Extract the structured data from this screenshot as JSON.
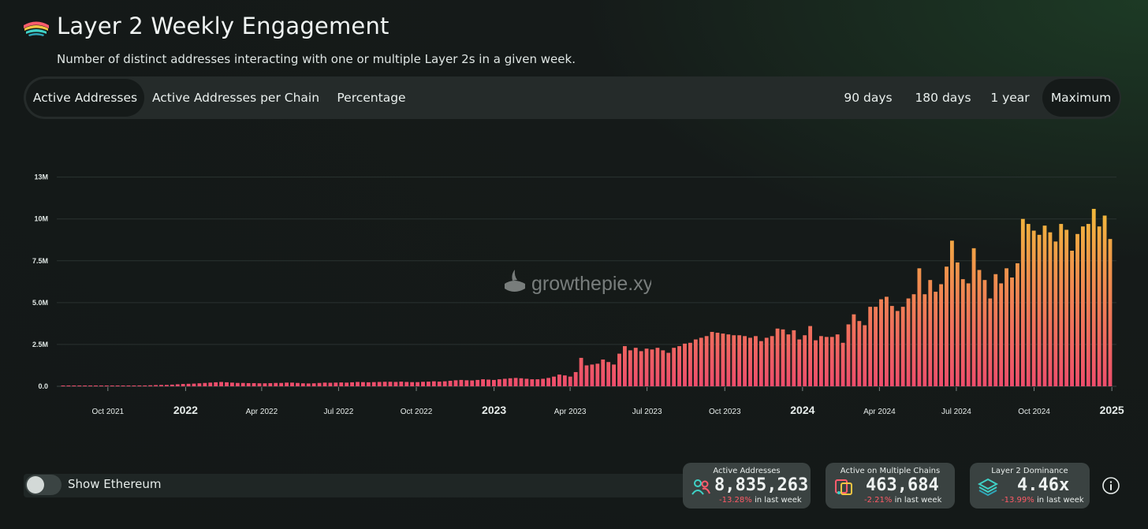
{
  "header": {
    "title": "Layer 2 Weekly Engagement",
    "subtitle": "Number of distinct addresses interacting with one or multiple Layer 2s in a given week."
  },
  "tabs": [
    {
      "label": "Active Addresses",
      "active": true
    },
    {
      "label": "Active Addresses per Chain",
      "active": false
    },
    {
      "label": "Percentage",
      "active": false
    }
  ],
  "ranges": [
    {
      "label": "90 days",
      "active": false
    },
    {
      "label": "180 days",
      "active": false
    },
    {
      "label": "1 year",
      "active": false
    },
    {
      "label": "Maximum",
      "active": true
    }
  ],
  "watermark": "growthepie.xyz",
  "chart_data": {
    "type": "bar",
    "title": "",
    "xlabel": "",
    "ylabel": "",
    "ylim": [
      0,
      13000000
    ],
    "yticks": [
      {
        "value": 0,
        "label": "0.0"
      },
      {
        "value": 2500000,
        "label": "2.5M"
      },
      {
        "value": 5000000,
        "label": "5.0M"
      },
      {
        "value": 7500000,
        "label": "7.5M"
      },
      {
        "value": 10000000,
        "label": "10M"
      },
      {
        "value": 12500000,
        "label": "13M"
      }
    ],
    "grid": true,
    "x_start": "2021-08-09",
    "x_end": "2024-12-30",
    "xticks": [
      {
        "date": "2021-10-01",
        "label": "Oct 2021",
        "major": false
      },
      {
        "date": "2022-01-01",
        "label": "2022",
        "major": true
      },
      {
        "date": "2022-04-01",
        "label": "Apr 2022",
        "major": false
      },
      {
        "date": "2022-07-01",
        "label": "Jul 2022",
        "major": false
      },
      {
        "date": "2022-10-01",
        "label": "Oct 2022",
        "major": false
      },
      {
        "date": "2023-01-01",
        "label": "2023",
        "major": true
      },
      {
        "date": "2023-04-01",
        "label": "Apr 2023",
        "major": false
      },
      {
        "date": "2023-07-01",
        "label": "Jul 2023",
        "major": false
      },
      {
        "date": "2023-10-01",
        "label": "Oct 2023",
        "major": false
      },
      {
        "date": "2024-01-01",
        "label": "2024",
        "major": true
      },
      {
        "date": "2024-04-01",
        "label": "Apr 2024",
        "major": false
      },
      {
        "date": "2024-07-01",
        "label": "Jul 2024",
        "major": false
      },
      {
        "date": "2024-10-01",
        "label": "Oct 2024",
        "major": false
      },
      {
        "date": "2025-01-01",
        "label": "2025",
        "major": true
      }
    ],
    "series": [
      {
        "values": [
          0.01,
          0.01,
          0.01,
          0.01,
          0.01,
          0.01,
          0.01,
          0.01,
          0.01,
          0.01,
          0.02,
          0.02,
          0.03,
          0.04,
          0.05,
          0.05,
          0.06,
          0.07,
          0.08,
          0.08,
          0.1,
          0.12,
          0.14,
          0.15,
          0.16,
          0.18,
          0.2,
          0.22,
          0.24,
          0.26,
          0.24,
          0.22,
          0.2,
          0.2,
          0.19,
          0.19,
          0.18,
          0.18,
          0.19,
          0.2,
          0.2,
          0.22,
          0.22,
          0.2,
          0.18,
          0.17,
          0.18,
          0.2,
          0.22,
          0.21,
          0.22,
          0.23,
          0.22,
          0.24,
          0.26,
          0.25,
          0.24,
          0.25,
          0.26,
          0.27,
          0.27,
          0.26,
          0.28,
          0.26,
          0.25,
          0.25,
          0.27,
          0.28,
          0.3,
          0.28,
          0.3,
          0.33,
          0.36,
          0.38,
          0.36,
          0.35,
          0.38,
          0.42,
          0.4,
          0.38,
          0.42,
          0.45,
          0.48,
          0.5,
          0.48,
          0.45,
          0.42,
          0.42,
          0.45,
          0.5,
          0.58,
          0.7,
          0.65,
          0.58,
          0.85,
          1.7,
          1.25,
          1.3,
          1.35,
          1.6,
          1.45,
          1.3,
          1.95,
          2.4,
          2.15,
          2.3,
          2.1,
          2.25,
          2.2,
          2.3,
          2.15,
          2.0,
          2.3,
          2.4,
          2.55,
          2.6,
          2.8,
          2.9,
          3.0,
          3.25,
          3.2,
          3.15,
          3.1,
          3.05,
          3.05,
          3.0,
          2.9,
          3.0,
          2.7,
          2.9,
          3.0,
          3.45,
          3.4,
          3.1,
          3.35,
          2.8,
          3.05,
          3.6,
          2.75,
          3.0,
          2.95,
          2.95,
          3.1,
          2.6,
          3.7,
          4.3,
          3.9,
          3.65,
          4.75,
          4.75,
          5.2,
          5.35,
          4.8,
          4.5,
          4.75,
          5.25,
          5.5,
          7.05,
          5.5,
          6.35,
          5.65,
          6.1,
          7.15,
          8.7,
          7.4,
          6.4,
          6.15,
          8.25,
          6.95,
          6.35,
          5.25,
          6.7,
          6.15,
          7.05,
          6.5,
          7.35,
          10.0,
          9.7,
          9.3,
          9.05,
          9.6,
          9.2,
          8.65,
          9.7,
          9.35,
          8.1,
          9.1,
          9.55,
          9.7,
          10.6,
          9.55,
          10.2,
          8.8
        ]
      }
    ],
    "value_unit": "M",
    "gradient": {
      "top": "#f2d22f",
      "bottom": "#ee4d6c"
    },
    "legend": "none"
  },
  "toggle": {
    "label": "Show Ethereum",
    "on": false
  },
  "cards": [
    {
      "title": "Active Addresses",
      "value": "8,835,263",
      "change": "-13.28%",
      "change_suffix": "in last week",
      "icon": "users-icon"
    },
    {
      "title": "Active on Multiple Chains",
      "value": "463,684",
      "change": "-2.21%",
      "change_suffix": "in last week",
      "icon": "multichain-icon"
    },
    {
      "title": "Layer 2 Dominance",
      "value": "4.46x",
      "change": "-13.99%",
      "change_suffix": "in last week",
      "icon": "layers-icon"
    }
  ],
  "info_icon": "info-icon"
}
